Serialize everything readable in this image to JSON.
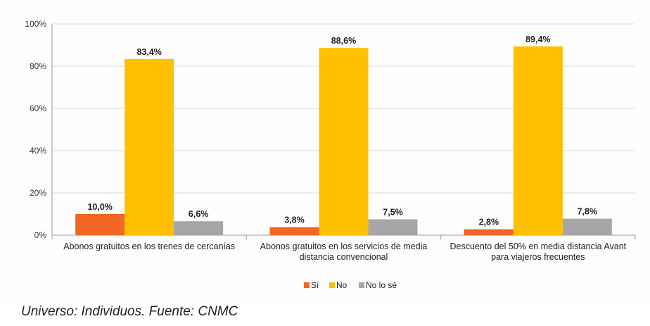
{
  "chart_data": {
    "type": "bar",
    "categories": [
      [
        "Abonos gratuitos en los trenes de cercanías"
      ],
      [
        "Abonos gratuitos en los servicios de media",
        "distancia convencional"
      ],
      [
        "Descuento del 50% en media distancia Avant",
        "para viajeros frecuentes"
      ]
    ],
    "series": [
      {
        "name": "Sí",
        "color": "#f26522",
        "values": [
          10.0,
          3.8,
          2.8
        ],
        "labels": [
          "10,0%",
          "3,8%",
          "2,8%"
        ]
      },
      {
        "name": "No",
        "color": "#ffc000",
        "values": [
          83.4,
          88.6,
          89.4
        ],
        "labels": [
          "83,4%",
          "88,6%",
          "89,4%"
        ]
      },
      {
        "name": "No lo sé",
        "color": "#a6a6a6",
        "values": [
          6.6,
          7.5,
          7.8
        ],
        "labels": [
          "6,6%",
          "7,5%",
          "7,8%"
        ]
      }
    ],
    "yticks": [
      "0%",
      "20%",
      "40%",
      "60%",
      "80%",
      "100%"
    ],
    "ylim": [
      0,
      100
    ],
    "grid": true,
    "legend_position": "bottom"
  },
  "footer": {
    "source": "Universo: Individuos. Fuente: CNMC"
  }
}
